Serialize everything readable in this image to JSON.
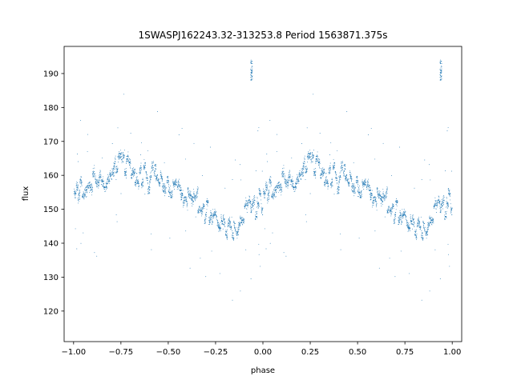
{
  "chart_data": {
    "type": "scatter",
    "title": "1SWASPJ162243.32-313253.8 Period 1563871.375s",
    "xlabel": "phase",
    "ylabel": "flux",
    "xlim": [
      -1.05,
      1.05
    ],
    "ylim": [
      111,
      198
    ],
    "xticks": [
      -1.0,
      -0.75,
      -0.5,
      -0.25,
      0.0,
      0.25,
      0.5,
      0.75,
      1.0
    ],
    "xtick_labels": [
      "−1.00",
      "−0.75",
      "−0.50",
      "−0.25",
      "0.00",
      "0.25",
      "0.50",
      "0.75",
      "1.00"
    ],
    "yticks": [
      120,
      130,
      140,
      150,
      160,
      170,
      180,
      190
    ],
    "ytick_labels": [
      "120",
      "130",
      "140",
      "150",
      "160",
      "170",
      "180",
      "190"
    ],
    "grid": false,
    "marker_color": "#1f77b4",
    "description_of_data": "phase-folded light curve, repeated over two cycles",
    "series": [
      {
        "trend_x": [
          0.0,
          0.05,
          0.1,
          0.15,
          0.2,
          0.25,
          0.3,
          0.35,
          0.4,
          0.45,
          0.5,
          0.55,
          0.6,
          0.65,
          0.7,
          0.75,
          0.8,
          0.85,
          0.9,
          0.95,
          1.0
        ],
        "trend_y": [
          153,
          157,
          158,
          157,
          159,
          163,
          161,
          161,
          159,
          160,
          158,
          157,
          155,
          152,
          150,
          147,
          146,
          145,
          148,
          151,
          153
        ],
        "outlier_clusters": [
          {
            "x": -0.06,
            "y": 191
          },
          {
            "x": 0.94,
            "y": 191
          }
        ]
      }
    ]
  }
}
